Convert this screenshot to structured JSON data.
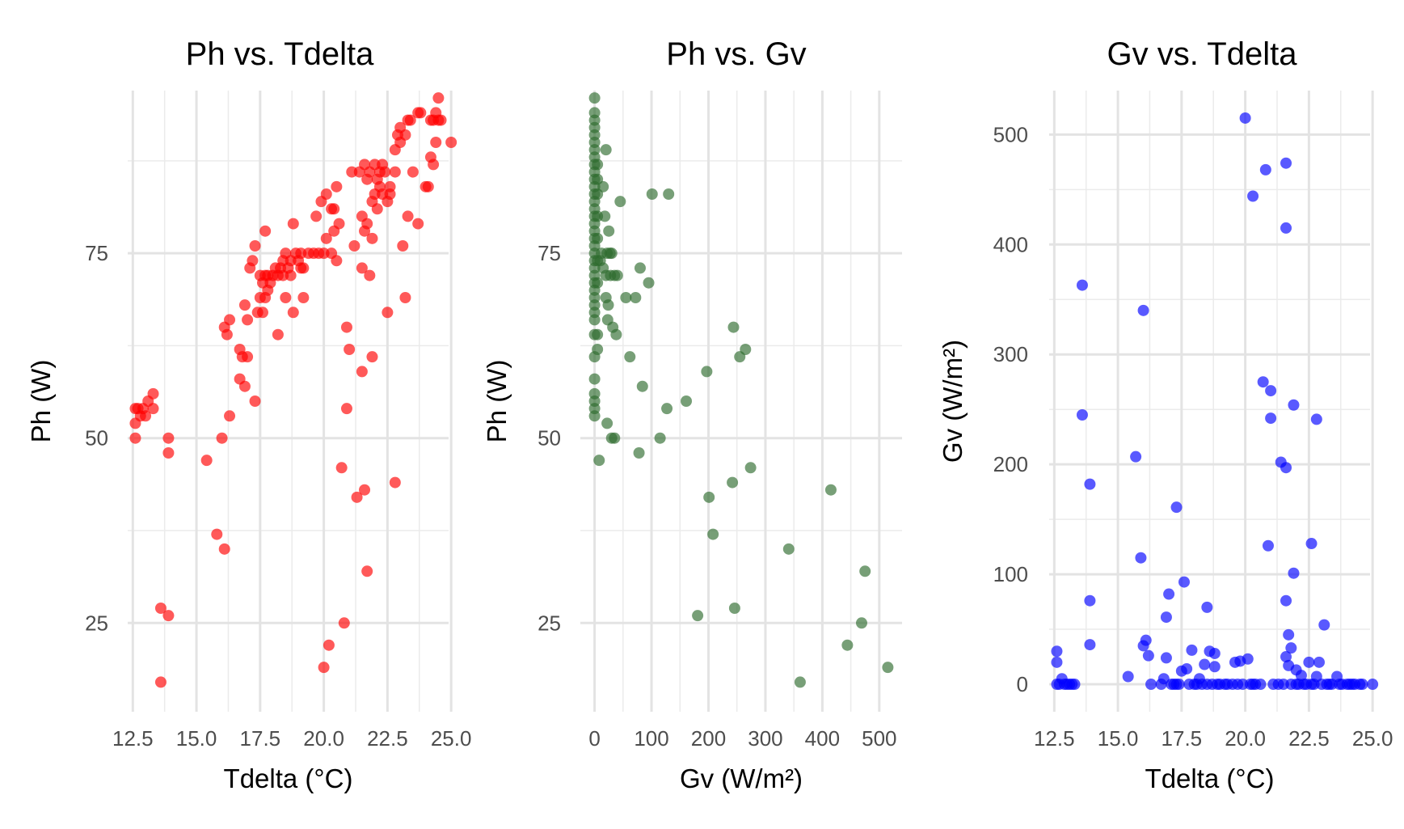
{
  "chart_data": [
    {
      "type": "scatter",
      "title": "Ph vs. Tdelta",
      "xlabel": "Tdelta (°C)",
      "ylabel": "Ph (W)",
      "xlim": [
        12.3,
        24.9
      ],
      "ylim": [
        13,
        97
      ],
      "xticks": [
        12.5,
        15.0,
        17.5,
        20.0,
        22.5,
        25.0
      ],
      "xtick_labels": [
        "12.5",
        "15.0",
        "17.5",
        "20.0",
        "22.5",
        "25.0"
      ],
      "yticks": [
        25,
        50,
        75
      ],
      "ytick_labels": [
        "25",
        "50",
        "75"
      ],
      "grid": true,
      "color": "#ff0000",
      "points": [
        [
          12.6,
          50
        ],
        [
          12.6,
          52
        ],
        [
          12.6,
          54
        ],
        [
          12.7,
          54
        ],
        [
          12.8,
          53
        ],
        [
          12.9,
          54
        ],
        [
          13.0,
          53
        ],
        [
          13.1,
          55
        ],
        [
          13.3,
          54
        ],
        [
          13.3,
          56
        ],
        [
          13.6,
          17
        ],
        [
          13.6,
          27
        ],
        [
          13.9,
          26
        ],
        [
          13.9,
          48
        ],
        [
          13.9,
          50
        ],
        [
          15.4,
          47
        ],
        [
          15.8,
          37
        ],
        [
          16.0,
          50
        ],
        [
          16.1,
          35
        ],
        [
          16.1,
          65
        ],
        [
          16.2,
          64
        ],
        [
          16.3,
          66
        ],
        [
          16.3,
          53
        ],
        [
          16.7,
          58
        ],
        [
          16.7,
          62
        ],
        [
          16.8,
          61
        ],
        [
          16.9,
          57
        ],
        [
          16.9,
          68
        ],
        [
          17.0,
          61
        ],
        [
          17.0,
          66
        ],
        [
          17.1,
          73
        ],
        [
          17.2,
          74
        ],
        [
          17.3,
          55
        ],
        [
          17.3,
          76
        ],
        [
          17.4,
          67
        ],
        [
          17.5,
          69
        ],
        [
          17.5,
          72
        ],
        [
          17.6,
          67
        ],
        [
          17.6,
          71
        ],
        [
          17.7,
          78
        ],
        [
          17.7,
          69
        ],
        [
          17.7,
          72
        ],
        [
          17.8,
          70
        ],
        [
          17.8,
          72
        ],
        [
          17.9,
          71
        ],
        [
          18.0,
          72
        ],
        [
          18.1,
          73
        ],
        [
          18.2,
          72
        ],
        [
          18.2,
          64
        ],
        [
          18.3,
          73
        ],
        [
          18.4,
          74
        ],
        [
          18.4,
          72
        ],
        [
          18.5,
          69
        ],
        [
          18.5,
          75
        ],
        [
          18.6,
          73
        ],
        [
          18.7,
          72
        ],
        [
          18.7,
          74
        ],
        [
          18.8,
          67
        ],
        [
          18.8,
          79
        ],
        [
          18.9,
          75
        ],
        [
          19.0,
          74
        ],
        [
          19.1,
          75
        ],
        [
          19.1,
          73
        ],
        [
          19.2,
          69
        ],
        [
          19.2,
          73
        ],
        [
          19.4,
          75
        ],
        [
          19.6,
          75
        ],
        [
          19.7,
          80
        ],
        [
          19.8,
          75
        ],
        [
          19.9,
          82
        ],
        [
          20.0,
          19
        ],
        [
          20.0,
          75
        ],
        [
          20.1,
          77
        ],
        [
          20.1,
          83
        ],
        [
          20.2,
          22
        ],
        [
          20.3,
          75
        ],
        [
          20.3,
          81
        ],
        [
          20.4,
          81
        ],
        [
          20.4,
          78
        ],
        [
          20.5,
          84
        ],
        [
          20.5,
          74
        ],
        [
          20.6,
          79
        ],
        [
          20.7,
          46
        ],
        [
          20.8,
          25
        ],
        [
          20.9,
          54
        ],
        [
          20.9,
          65
        ],
        [
          21.0,
          62
        ],
        [
          21.1,
          86
        ],
        [
          21.2,
          76
        ],
        [
          21.3,
          42
        ],
        [
          21.4,
          86
        ],
        [
          21.5,
          80
        ],
        [
          21.5,
          73
        ],
        [
          21.5,
          59
        ],
        [
          21.6,
          43
        ],
        [
          21.6,
          78
        ],
        [
          21.6,
          87
        ],
        [
          21.7,
          32
        ],
        [
          21.7,
          79
        ],
        [
          21.7,
          85
        ],
        [
          21.8,
          72
        ],
        [
          21.8,
          86
        ],
        [
          21.9,
          61
        ],
        [
          21.9,
          77
        ],
        [
          21.9,
          82
        ],
        [
          22.0,
          83
        ],
        [
          22.0,
          87
        ],
        [
          22.1,
          85
        ],
        [
          22.1,
          81
        ],
        [
          22.2,
          86
        ],
        [
          22.2,
          84
        ],
        [
          22.3,
          87
        ],
        [
          22.3,
          83
        ],
        [
          22.4,
          86
        ],
        [
          22.5,
          67
        ],
        [
          22.5,
          82
        ],
        [
          22.6,
          83
        ],
        [
          22.6,
          84
        ],
        [
          22.8,
          44
        ],
        [
          22.8,
          86
        ],
        [
          22.8,
          89
        ],
        [
          22.9,
          91
        ],
        [
          23.0,
          90
        ],
        [
          23.0,
          92
        ],
        [
          23.1,
          76
        ],
        [
          23.2,
          69
        ],
        [
          23.2,
          91
        ],
        [
          23.3,
          80
        ],
        [
          23.3,
          93
        ],
        [
          23.4,
          93
        ],
        [
          23.5,
          86
        ],
        [
          23.7,
          79
        ],
        [
          23.7,
          94
        ],
        [
          23.8,
          94
        ],
        [
          24.0,
          84
        ],
        [
          24.1,
          84
        ],
        [
          24.2,
          88
        ],
        [
          24.2,
          93
        ],
        [
          24.3,
          87
        ],
        [
          24.3,
          93
        ],
        [
          24.4,
          94
        ],
        [
          24.4,
          90
        ],
        [
          24.5,
          93
        ],
        [
          24.5,
          96
        ],
        [
          24.6,
          93
        ],
        [
          25.0,
          90
        ]
      ]
    },
    {
      "type": "scatter",
      "title": "Ph vs. Gv",
      "xlabel": "Gv (W/m²)",
      "ylabel": "Ph (W)",
      "xlim": [
        -25,
        540
      ],
      "ylim": [
        13,
        97
      ],
      "xticks": [
        0,
        100,
        200,
        300,
        400,
        500
      ],
      "xtick_labels": [
        "0",
        "100",
        "200",
        "300",
        "400",
        "500"
      ],
      "yticks": [
        25,
        50,
        75
      ],
      "ytick_labels": [
        "25",
        "50",
        "75"
      ],
      "grid": true,
      "color": "#2e6b2e",
      "points": [
        [
          0,
          96
        ],
        [
          0,
          94
        ],
        [
          0,
          93
        ],
        [
          0,
          92
        ],
        [
          0,
          91
        ],
        [
          0,
          90
        ],
        [
          0,
          89
        ],
        [
          0,
          88
        ],
        [
          0,
          87
        ],
        [
          0,
          86
        ],
        [
          0,
          85
        ],
        [
          0,
          84
        ],
        [
          0,
          83
        ],
        [
          0,
          82
        ],
        [
          0,
          81
        ],
        [
          0,
          80
        ],
        [
          0,
          79
        ],
        [
          0,
          78
        ],
        [
          0,
          77
        ],
        [
          0,
          76
        ],
        [
          0,
          75
        ],
        [
          0,
          74
        ],
        [
          0,
          73
        ],
        [
          0,
          72
        ],
        [
          0,
          71
        ],
        [
          0,
          70
        ],
        [
          0,
          69
        ],
        [
          0,
          68
        ],
        [
          0,
          67
        ],
        [
          0,
          66
        ],
        [
          0,
          64
        ],
        [
          0,
          61
        ],
        [
          0,
          58
        ],
        [
          0,
          56
        ],
        [
          0,
          55
        ],
        [
          0,
          54
        ],
        [
          0,
          53
        ],
        [
          5,
          87
        ],
        [
          5,
          85
        ],
        [
          5,
          83
        ],
        [
          5,
          80
        ],
        [
          5,
          77
        ],
        [
          5,
          74
        ],
        [
          5,
          71
        ],
        [
          5,
          64
        ],
        [
          5,
          62
        ],
        [
          8,
          47
        ],
        [
          10,
          74
        ],
        [
          12,
          75
        ],
        [
          15,
          84
        ],
        [
          15,
          73
        ],
        [
          18,
          80
        ],
        [
          20,
          72
        ],
        [
          20,
          69
        ],
        [
          20,
          89
        ],
        [
          22,
          52
        ],
        [
          22,
          75
        ],
        [
          23,
          66
        ],
        [
          24,
          68
        ],
        [
          25,
          78
        ],
        [
          27,
          75
        ],
        [
          28,
          72
        ],
        [
          30,
          75
        ],
        [
          30,
          50
        ],
        [
          32,
          65
        ],
        [
          35,
          50
        ],
        [
          35,
          72
        ],
        [
          38,
          64
        ],
        [
          40,
          72
        ],
        [
          45,
          82
        ],
        [
          55,
          69
        ],
        [
          62,
          61
        ],
        [
          72,
          69
        ],
        [
          78,
          48
        ],
        [
          80,
          73
        ],
        [
          84,
          57
        ],
        [
          95,
          71
        ],
        [
          101,
          83
        ],
        [
          115,
          50
        ],
        [
          127,
          54
        ],
        [
          130,
          83
        ],
        [
          161,
          55
        ],
        [
          181,
          26
        ],
        [
          197,
          59
        ],
        [
          201,
          42
        ],
        [
          208,
          37
        ],
        [
          242,
          44
        ],
        [
          244,
          65
        ],
        [
          246,
          27
        ],
        [
          255,
          61
        ],
        [
          265,
          62
        ],
        [
          274,
          46
        ],
        [
          341,
          35
        ],
        [
          361,
          17
        ],
        [
          415,
          43
        ],
        [
          444,
          22
        ],
        [
          469,
          25
        ],
        [
          475,
          32
        ],
        [
          515,
          19
        ]
      ]
    },
    {
      "type": "scatter",
      "title": "Gv vs. Tdelta",
      "xlabel": "Tdelta (°C)",
      "ylabel": "Gv (W/m²)",
      "xlim": [
        12.3,
        24.9
      ],
      "ylim": [
        -25,
        540
      ],
      "xticks": [
        12.5,
        15.0,
        17.5,
        20.0,
        22.5,
        25.0
      ],
      "xtick_labels": [
        "12.5",
        "15.0",
        "17.5",
        "20.0",
        "22.5",
        "25.0"
      ],
      "yticks": [
        0,
        100,
        200,
        300,
        400,
        500
      ],
      "ytick_labels": [
        "0",
        "100",
        "200",
        "300",
        "400",
        "500"
      ],
      "grid": true,
      "color": "#0000ff",
      "points": [
        [
          12.6,
          30
        ],
        [
          12.6,
          20
        ],
        [
          12.6,
          0
        ],
        [
          12.7,
          0
        ],
        [
          12.8,
          5
        ],
        [
          12.9,
          0
        ],
        [
          13.0,
          0
        ],
        [
          13.1,
          0
        ],
        [
          13.2,
          0
        ],
        [
          13.3,
          0
        ],
        [
          13.6,
          363
        ],
        [
          13.6,
          245
        ],
        [
          13.9,
          182
        ],
        [
          13.9,
          76
        ],
        [
          13.9,
          36
        ],
        [
          15.4,
          7
        ],
        [
          15.7,
          207
        ],
        [
          15.9,
          115
        ],
        [
          16.0,
          340
        ],
        [
          16.0,
          35
        ],
        [
          16.1,
          40
        ],
        [
          16.2,
          26
        ],
        [
          16.3,
          0
        ],
        [
          16.7,
          0
        ],
        [
          16.8,
          5
        ],
        [
          16.9,
          61
        ],
        [
          16.9,
          24
        ],
        [
          17.0,
          82
        ],
        [
          17.1,
          0
        ],
        [
          17.2,
          0
        ],
        [
          17.3,
          161
        ],
        [
          17.3,
          0
        ],
        [
          17.4,
          0
        ],
        [
          17.5,
          12
        ],
        [
          17.6,
          93
        ],
        [
          17.7,
          14
        ],
        [
          17.8,
          0
        ],
        [
          17.9,
          31
        ],
        [
          18.0,
          0
        ],
        [
          18.1,
          0
        ],
        [
          18.2,
          5
        ],
        [
          18.3,
          0
        ],
        [
          18.4,
          18
        ],
        [
          18.5,
          70
        ],
        [
          18.5,
          0
        ],
        [
          18.6,
          30
        ],
        [
          18.7,
          0
        ],
        [
          18.8,
          16
        ],
        [
          18.8,
          28
        ],
        [
          18.9,
          0
        ],
        [
          19.0,
          0
        ],
        [
          19.2,
          0
        ],
        [
          19.3,
          0
        ],
        [
          19.5,
          0
        ],
        [
          19.6,
          20
        ],
        [
          19.7,
          0
        ],
        [
          19.8,
          21
        ],
        [
          19.9,
          0
        ],
        [
          20.0,
          515
        ],
        [
          20.1,
          23
        ],
        [
          20.2,
          0
        ],
        [
          20.3,
          444
        ],
        [
          20.3,
          0
        ],
        [
          20.4,
          0
        ],
        [
          20.6,
          0
        ],
        [
          20.7,
          275
        ],
        [
          20.8,
          468
        ],
        [
          20.9,
          126
        ],
        [
          21.0,
          242
        ],
        [
          21.0,
          267
        ],
        [
          21.1,
          0
        ],
        [
          21.3,
          0
        ],
        [
          21.4,
          202
        ],
        [
          21.5,
          0
        ],
        [
          21.6,
          76
        ],
        [
          21.6,
          415
        ],
        [
          21.6,
          474
        ],
        [
          21.6,
          197
        ],
        [
          21.6,
          25
        ],
        [
          21.7,
          17
        ],
        [
          21.7,
          45
        ],
        [
          21.8,
          0
        ],
        [
          21.8,
          33
        ],
        [
          21.9,
          254
        ],
        [
          21.9,
          101
        ],
        [
          22.0,
          13
        ],
        [
          22.0,
          0
        ],
        [
          22.1,
          0
        ],
        [
          22.2,
          8
        ],
        [
          22.3,
          0
        ],
        [
          22.4,
          0
        ],
        [
          22.5,
          20
        ],
        [
          22.6,
          0
        ],
        [
          22.6,
          128
        ],
        [
          22.7,
          0
        ],
        [
          22.8,
          7
        ],
        [
          22.8,
          241
        ],
        [
          22.9,
          20
        ],
        [
          23.0,
          0
        ],
        [
          23.1,
          54
        ],
        [
          23.2,
          0
        ],
        [
          23.3,
          0
        ],
        [
          23.4,
          0
        ],
        [
          23.6,
          7
        ],
        [
          23.7,
          0
        ],
        [
          23.8,
          0
        ],
        [
          24.0,
          0
        ],
        [
          24.1,
          0
        ],
        [
          24.2,
          0
        ],
        [
          24.3,
          0
        ],
        [
          24.5,
          0
        ],
        [
          24.6,
          0
        ],
        [
          25.0,
          0
        ]
      ]
    }
  ]
}
